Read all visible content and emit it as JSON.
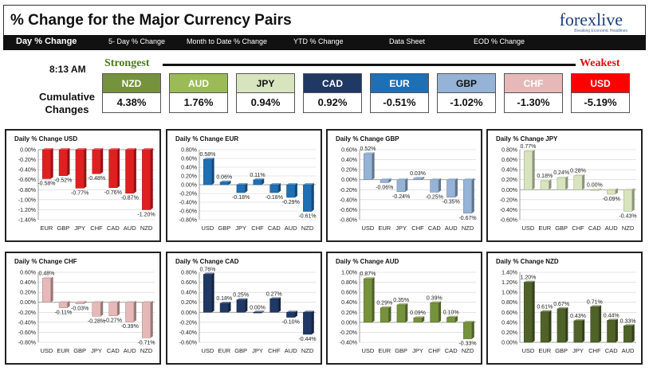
{
  "header": {
    "title": "% Change for the Major Currency Pairs",
    "logo": "forexlive",
    "logo_sub": "Breaking Economic Headlines"
  },
  "nav": {
    "items": [
      "Day % Change",
      "5- Day % Change",
      "Month to Date % Change",
      "YTD % Change",
      "Data Sheet",
      "EOD % Change"
    ]
  },
  "summary": {
    "time": "8:13 AM",
    "cumulative_label_1": "Cumulative",
    "cumulative_label_2": "Changes",
    "strongest_label": "Strongest",
    "weakest_label": "Weakest",
    "tiles": [
      {
        "currency": "NZD",
        "value": "4.38%",
        "bg": "#76923c",
        "fg": "#ffffff"
      },
      {
        "currency": "AUD",
        "value": "1.76%",
        "bg": "#9bbb59",
        "fg": "#ffffff"
      },
      {
        "currency": "JPY",
        "value": "0.94%",
        "bg": "#d7e4bd",
        "fg": "#111111"
      },
      {
        "currency": "CAD",
        "value": "0.92%",
        "bg": "#1f3864",
        "fg": "#ffffff"
      },
      {
        "currency": "EUR",
        "value": "-0.51%",
        "bg": "#1f6fb5",
        "fg": "#ffffff"
      },
      {
        "currency": "GBP",
        "value": "-1.02%",
        "bg": "#95b3d7",
        "fg": "#111111"
      },
      {
        "currency": "CHF",
        "value": "-1.30%",
        "bg": "#e6b9b8",
        "fg": "#ffffff"
      },
      {
        "currency": "USD",
        "value": "-5.19%",
        "bg": "#ff0000",
        "fg": "#ffffff"
      }
    ]
  },
  "chart_data": [
    {
      "type": "bar",
      "title": "Daily % Change USD",
      "categories": [
        "EUR",
        "GBP",
        "JPY",
        "CHF",
        "CAD",
        "AUD",
        "NZD"
      ],
      "values": [
        -0.58,
        -0.52,
        -0.77,
        -0.48,
        -0.76,
        -0.87,
        -1.2
      ],
      "labels": [
        "-0.58%",
        "-0.52%",
        "-0.77%",
        "-0.48%",
        "-0.76%",
        "-0.87%",
        "-1.20%"
      ],
      "ylim": [
        -1.4,
        0.0
      ],
      "ticks": [
        0.0,
        -0.2,
        -0.4,
        -0.6,
        -0.8,
        -1.0,
        -1.2,
        -1.4
      ],
      "tick_labels": [
        "0.00%",
        "-0.20%",
        "-0.40%",
        "-0.60%",
        "-0.80%",
        "-1.00%",
        "-1.20%",
        "-1.40%"
      ],
      "color": "#e02020"
    },
    {
      "type": "bar",
      "title": "Daily % Change EUR",
      "categories": [
        "USD",
        "GBP",
        "JPY",
        "CHF",
        "CAD",
        "AUD",
        "NZD"
      ],
      "values": [
        0.58,
        0.06,
        -0.18,
        0.11,
        -0.18,
        -0.29,
        -0.61
      ],
      "labels": [
        "0.58%",
        "0.06%",
        "-0.18%",
        "0.11%",
        "-0.18%",
        "-0.29%",
        "-0.61%"
      ],
      "ylim": [
        -0.8,
        0.8
      ],
      "ticks": [
        0.8,
        0.6,
        0.4,
        0.2,
        0.0,
        -0.2,
        -0.4,
        -0.6,
        -0.8
      ],
      "tick_labels": [
        "0.80%",
        "0.60%",
        "0.40%",
        "0.20%",
        "0.00%",
        "-0.20%",
        "-0.40%",
        "-0.60%",
        "-0.80%"
      ],
      "color": "#1f6fb5"
    },
    {
      "type": "bar",
      "title": "Daily % Change GBP",
      "categories": [
        "USD",
        "EUR",
        "JPY",
        "CHF",
        "CAD",
        "AUD",
        "NZD"
      ],
      "values": [
        0.52,
        -0.06,
        -0.24,
        0.03,
        -0.25,
        -0.35,
        -0.67
      ],
      "labels": [
        "0.52%",
        "-0.06%",
        "-0.24%",
        "0.03%",
        "-0.25%",
        "-0.35%",
        "-0.67%"
      ],
      "ylim": [
        -0.8,
        0.6
      ],
      "ticks": [
        0.6,
        0.4,
        0.2,
        0.0,
        -0.2,
        -0.4,
        -0.6,
        -0.8
      ],
      "tick_labels": [
        "0.60%",
        "0.40%",
        "0.20%",
        "0.00%",
        "-0.20%",
        "-0.40%",
        "-0.60%",
        "-0.80%"
      ],
      "color": "#95b3d7"
    },
    {
      "type": "bar",
      "title": "Daily % Change JPY",
      "categories": [
        "USD",
        "EUR",
        "GBP",
        "CHF",
        "CAD",
        "AUD",
        "NZD"
      ],
      "values": [
        0.77,
        0.18,
        0.24,
        0.28,
        0.0,
        -0.09,
        -0.43
      ],
      "labels": [
        "0.77%",
        "0.18%",
        "0.24%",
        "0.28%",
        "0.00%",
        "-0.09%",
        "-0.43%"
      ],
      "ylim": [
        -0.6,
        0.8
      ],
      "ticks": [
        0.8,
        0.6,
        0.4,
        0.2,
        0.0,
        -0.2,
        -0.4,
        -0.6
      ],
      "tick_labels": [
        "0.80%",
        "0.60%",
        "0.40%",
        "0.20%",
        "0.00%",
        "-0.20%",
        "-0.40%",
        "-0.60%"
      ],
      "color": "#d7e4bd"
    },
    {
      "type": "bar",
      "title": "Daily % Change CHF",
      "categories": [
        "USD",
        "EUR",
        "GBP",
        "JPY",
        "CAD",
        "AUD",
        "NZD"
      ],
      "values": [
        0.48,
        -0.11,
        -0.03,
        -0.28,
        -0.27,
        -0.39,
        -0.71
      ],
      "labels": [
        "0.48%",
        "-0.11%",
        "-0.03%",
        "-0.28%",
        "-0.27%",
        "-0.39%",
        "-0.71%"
      ],
      "ylim": [
        -0.8,
        0.6
      ],
      "ticks": [
        0.6,
        0.4,
        0.2,
        0.0,
        -0.2,
        -0.4,
        -0.6,
        -0.8
      ],
      "tick_labels": [
        "0.60%",
        "0.40%",
        "0.20%",
        "0.00%",
        "-0.20%",
        "-0.40%",
        "-0.60%",
        "-0.80%"
      ],
      "color": "#e6b9b8"
    },
    {
      "type": "bar",
      "title": "Daily % Change CAD",
      "categories": [
        "USD",
        "EUR",
        "GBP",
        "JPY",
        "CHF",
        "AUD",
        "NZD"
      ],
      "values": [
        0.76,
        0.18,
        0.25,
        0.0,
        0.27,
        -0.1,
        -0.44
      ],
      "labels": [
        "0.76%",
        "0.18%",
        "0.25%",
        "0.00%",
        "0.27%",
        "-0.10%",
        "-0.44%"
      ],
      "ylim": [
        -0.6,
        0.8
      ],
      "ticks": [
        0.8,
        0.6,
        0.4,
        0.2,
        0.0,
        -0.2,
        -0.4,
        -0.6
      ],
      "tick_labels": [
        "0.80%",
        "0.60%",
        "0.40%",
        "0.20%",
        "0.00%",
        "-0.20%",
        "-0.40%",
        "-0.60%"
      ],
      "color": "#1f3864"
    },
    {
      "type": "bar",
      "title": "Daily % Change AUD",
      "categories": [
        "USD",
        "EUR",
        "GBP",
        "JPY",
        "CHF",
        "CAD",
        "NZD"
      ],
      "values": [
        0.87,
        0.29,
        0.35,
        0.09,
        0.39,
        0.1,
        -0.33
      ],
      "labels": [
        "0.87%",
        "0.29%",
        "0.35%",
        "0.09%",
        "0.39%",
        "0.10%",
        "-0.33%"
      ],
      "ylim": [
        -0.4,
        1.0
      ],
      "ticks": [
        1.0,
        0.8,
        0.6,
        0.4,
        0.2,
        0.0,
        -0.2,
        -0.4
      ],
      "tick_labels": [
        "1.00%",
        "0.80%",
        "0.60%",
        "0.40%",
        "0.20%",
        "0.00%",
        "-0.20%",
        "-0.40%"
      ],
      "color": "#76923c"
    },
    {
      "type": "bar",
      "title": "Daily % Change NZD",
      "categories": [
        "USD",
        "EUR",
        "GBP",
        "JPY",
        "CHF",
        "CAD",
        "AUD"
      ],
      "values": [
        1.2,
        0.61,
        0.67,
        0.43,
        0.71,
        0.44,
        0.33
      ],
      "labels": [
        "1.20%",
        "0.61%",
        "0.67%",
        "0.43%",
        "0.71%",
        "0.44%",
        "0.33%"
      ],
      "ylim": [
        0.0,
        1.4
      ],
      "ticks": [
        1.4,
        1.2,
        1.0,
        0.8,
        0.6,
        0.4,
        0.2,
        0.0
      ],
      "tick_labels": [
        "1.40%",
        "1.20%",
        "1.00%",
        "0.80%",
        "0.60%",
        "0.40%",
        "0.20%",
        "0.00%"
      ],
      "color": "#4f6228"
    }
  ]
}
